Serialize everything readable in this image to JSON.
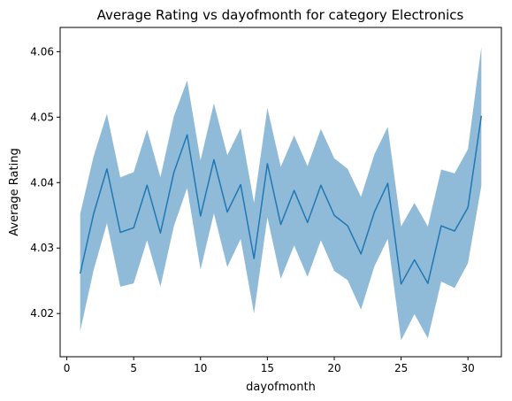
{
  "chart_data": {
    "type": "line",
    "title": "Average Rating vs dayofmonth for category Electronics",
    "xlabel": "dayofmonth",
    "ylabel": "Average Rating",
    "xlim": [
      -0.5,
      32.5
    ],
    "ylim": [
      4.0134,
      4.0637
    ],
    "xticks": [
      0,
      5,
      10,
      15,
      20,
      25,
      30
    ],
    "xtick_labels": [
      "0",
      "5",
      "10",
      "15",
      "20",
      "25",
      "30"
    ],
    "yticks": [
      4.02,
      4.03,
      4.04,
      4.05,
      4.06
    ],
    "ytick_labels": [
      "4.02",
      "4.03",
      "4.04",
      "4.05",
      "4.06"
    ],
    "grid": false,
    "legend": "none",
    "colors": {
      "line": "#1f77b4",
      "band": "#1f77b4",
      "band_opacity": 0.5
    },
    "x": [
      1,
      2,
      3,
      4,
      5,
      6,
      7,
      8,
      9,
      10,
      11,
      12,
      13,
      14,
      15,
      16,
      17,
      18,
      19,
      20,
      21,
      22,
      23,
      24,
      25,
      26,
      27,
      28,
      29,
      30,
      31
    ],
    "series": [
      {
        "values": [
          4.0261,
          4.0352,
          4.0421,
          4.0324,
          4.0331,
          4.0396,
          4.0323,
          4.0415,
          4.0473,
          4.0349,
          4.0435,
          4.0355,
          4.0397,
          4.0284,
          4.0429,
          4.0336,
          4.0388,
          4.0339,
          4.0396,
          4.035,
          4.0334,
          4.0291,
          4.0355,
          4.0399,
          4.0245,
          4.0282,
          4.0246,
          4.0334,
          4.0326,
          4.0362,
          4.0502
        ],
        "lower": [
          4.0173,
          4.0266,
          4.0338,
          4.0241,
          4.0246,
          4.0312,
          4.0241,
          4.0333,
          4.0392,
          4.0267,
          4.0353,
          4.0271,
          4.0314,
          4.02,
          4.0347,
          4.0253,
          4.0304,
          4.0256,
          4.0312,
          4.0265,
          4.0251,
          4.0206,
          4.0272,
          4.0314,
          4.0159,
          4.0199,
          4.0162,
          4.0249,
          4.0239,
          4.0277,
          4.0395
        ],
        "upper": [
          4.0352,
          4.044,
          4.0505,
          4.0408,
          4.0416,
          4.0481,
          4.0408,
          4.0501,
          4.0556,
          4.0434,
          4.0521,
          4.0442,
          4.0483,
          4.0369,
          4.0514,
          4.0424,
          4.0472,
          4.0425,
          4.0482,
          4.0437,
          4.0421,
          4.0378,
          4.0443,
          4.0485,
          4.0333,
          4.0369,
          4.0333,
          4.042,
          4.0414,
          4.0451,
          4.0607
        ]
      }
    ]
  }
}
